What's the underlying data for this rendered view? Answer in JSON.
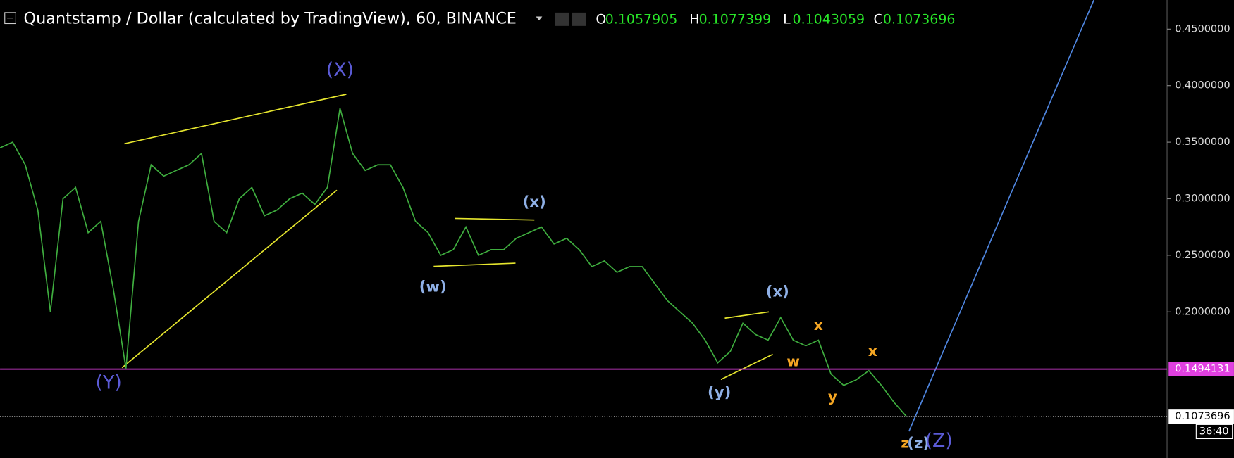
{
  "chart_data": {
    "type": "line",
    "title": "Quantstamp / Dollar (calculated by TradingView), 60, BINANCE",
    "ohlc": [
      {
        "label": "O",
        "value": 0.1057905
      },
      {
        "label": "H",
        "value": 0.1077399
      },
      {
        "label": "L",
        "value": 0.1043059
      },
      {
        "label": "C",
        "value": 0.1073696
      }
    ],
    "series": [
      {
        "name": "QSPUSD",
        "color": "#3fae3f",
        "values": [
          0.345,
          0.35,
          0.33,
          0.29,
          0.2,
          0.3,
          0.31,
          0.27,
          0.28,
          0.22,
          0.15,
          0.28,
          0.33,
          0.32,
          0.325,
          0.33,
          0.34,
          0.28,
          0.27,
          0.3,
          0.31,
          0.285,
          0.29,
          0.3,
          0.305,
          0.295,
          0.31,
          0.38,
          0.34,
          0.325,
          0.33,
          0.33,
          0.31,
          0.28,
          0.27,
          0.25,
          0.255,
          0.275,
          0.25,
          0.255,
          0.255,
          0.265,
          0.27,
          0.275,
          0.26,
          0.265,
          0.255,
          0.24,
          0.245,
          0.235,
          0.24,
          0.24,
          0.225,
          0.21,
          0.2,
          0.19,
          0.175,
          0.155,
          0.165,
          0.19,
          0.18,
          0.175,
          0.195,
          0.175,
          0.17,
          0.175,
          0.145,
          0.135,
          0.14,
          0.148,
          0.135,
          0.12,
          0.1074
        ]
      }
    ],
    "ylim": [
      0.0708,
      0.4757
    ],
    "yticks": [
      {
        "value": 0.2,
        "label": "0.2000000"
      },
      {
        "value": 0.25,
        "label": "0.2500000"
      },
      {
        "value": 0.3,
        "label": "0.3000000"
      },
      {
        "value": 0.35,
        "label": "0.3500000"
      },
      {
        "value": 0.4,
        "label": "0.4000000"
      },
      {
        "value": 0.45,
        "label": "0.4500000"
      }
    ],
    "level": 0.1494131,
    "level_color": "#e040e0",
    "last_price": 0.1073696,
    "countdown": "36:40",
    "annotations": [
      {
        "text": "(X)",
        "color": "#5b5bd6"
      },
      {
        "text": "(Y)",
        "color": "#5b5bd6"
      },
      {
        "text": "(w)",
        "color": "#8fb0e6"
      },
      {
        "text": "(x)",
        "color": "#8fb0e6"
      },
      {
        "text": "(x)",
        "color": "#8fb0e6"
      },
      {
        "text": "(y)",
        "color": "#8fb0e6"
      },
      {
        "text": "w",
        "color": "#f5a623"
      },
      {
        "text": "x",
        "color": "#f5a623"
      },
      {
        "text": "x",
        "color": "#f5a623"
      },
      {
        "text": "y",
        "color": "#f5a623"
      },
      {
        "text": "z",
        "color": "#f5a623"
      },
      {
        "text": "(z)",
        "color": "#8fb0e6"
      },
      {
        "text": "(Z)",
        "color": "#5b5bd6"
      }
    ]
  }
}
